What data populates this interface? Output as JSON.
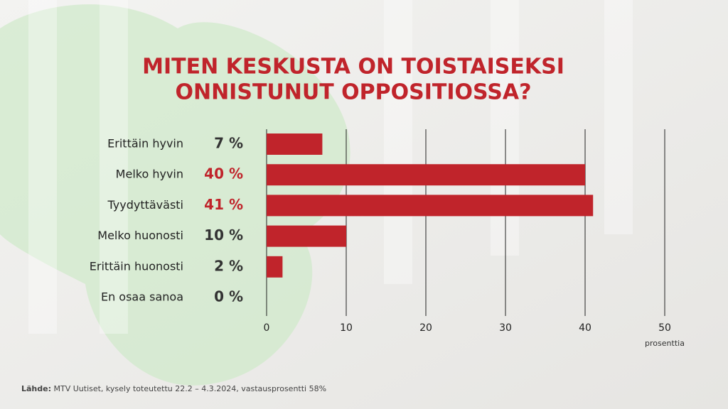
{
  "chart_data": {
    "type": "bar",
    "orientation": "horizontal",
    "title": [
      "MITEN KESKUSTA ON TOISTAISEKSI",
      "ONNISTUNUT OPPOSITIOSSA?"
    ],
    "categories": [
      "Erittäin hyvin",
      "Melko hyvin",
      "Tyydyttävästi",
      "Melko huonosti",
      "Erittäin huonosti",
      "En osaa sanoa"
    ],
    "values": [
      7,
      40,
      41,
      10,
      2,
      0
    ],
    "value_labels": [
      "7 %",
      "40 %",
      "41 %",
      "10 %",
      "2 %",
      "0 %"
    ],
    "value_label_colors": [
      "#333333",
      "#c0242b",
      "#c0242b",
      "#333333",
      "#333333",
      "#333333"
    ],
    "color": "#c0242b",
    "xlim": [
      0,
      50
    ],
    "xticks": [
      0,
      10,
      20,
      30,
      40,
      50
    ],
    "grid": true,
    "xlabel": "prosenttia",
    "source_label": "Lähde:",
    "source": "MTV Uutiset, kysely toteutettu 22.2 – 4.3.2024, vastausprosentti 58%"
  }
}
